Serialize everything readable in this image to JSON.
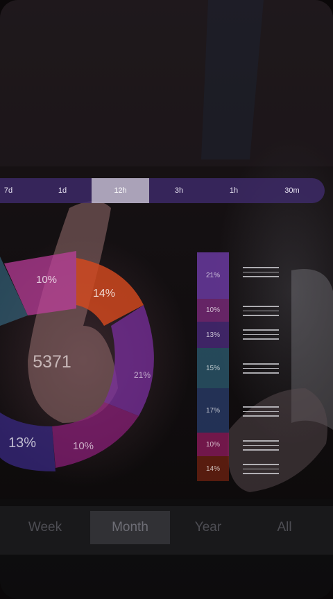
{
  "time_filter": {
    "options": [
      "7d",
      "1d",
      "12h",
      "3h",
      "1h",
      "30m"
    ],
    "selected": "12h"
  },
  "donut": {
    "center_value": "5371",
    "segments": [
      {
        "label": "10%",
        "color": "#c23fa0"
      },
      {
        "label": "14%",
        "color": "#d4491f"
      },
      {
        "label": "21%",
        "color": "#7a2f9e"
      },
      {
        "label": "10%",
        "color": "#8c1f7a"
      },
      {
        "label": "13%",
        "color": "#3a2a86"
      }
    ]
  },
  "stacked_bar": {
    "segments": [
      {
        "label": "21%",
        "color": "#6a3aa0"
      },
      {
        "label": "10%",
        "color": "#7a2a7a"
      },
      {
        "label": "13%",
        "color": "#4a2a7a"
      },
      {
        "label": "15%",
        "color": "#2b5a6e"
      },
      {
        "label": "17%",
        "color": "#2a3e6e"
      },
      {
        "label": "10%",
        "color": "#8a1a5a"
      },
      {
        "label": "14%",
        "color": "#6a2010"
      }
    ]
  },
  "period_tabs": {
    "options": [
      "Week",
      "Month",
      "Year",
      "All"
    ],
    "selected": "Month"
  }
}
